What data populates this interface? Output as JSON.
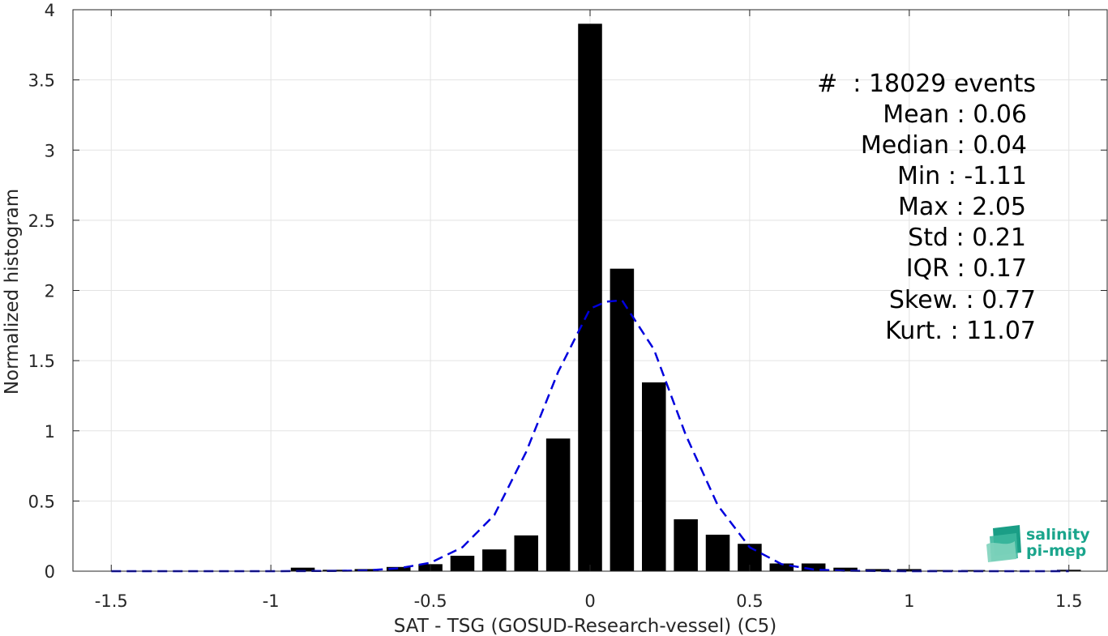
{
  "chart_data": {
    "type": "bar",
    "xlabel": "SAT - TSG (GOSUD-Research-vessel) (C5)",
    "ylabel": "Normalized histogram",
    "xlim": [
      -1.62,
      1.62
    ],
    "ylim": [
      0,
      4
    ],
    "xticks": [
      -1.5,
      -1,
      -0.5,
      0,
      0.5,
      1,
      1.5
    ],
    "xtick_labels": [
      "-1.5",
      "-1",
      "-0.5",
      "0",
      "0.5",
      "1",
      "1.5"
    ],
    "yticks": [
      0,
      0.5,
      1,
      1.5,
      2,
      2.5,
      3,
      3.5,
      4
    ],
    "ytick_labels": [
      "0",
      "0.5",
      "1",
      "1.5",
      "2",
      "2.5",
      "3",
      "3.5",
      "4"
    ],
    "grid": true,
    "bar_width": 0.075,
    "bars": {
      "x": [
        -0.9,
        -0.8,
        -0.7,
        -0.6,
        -0.5,
        -0.4,
        -0.3,
        -0.2,
        -0.1,
        0.0,
        0.1,
        0.2,
        0.3,
        0.4,
        0.5,
        0.6,
        0.7,
        0.8,
        0.9,
        1.0,
        1.1,
        1.2,
        1.3,
        1.5
      ],
      "values": [
        0.025,
        0.01,
        0.015,
        0.03,
        0.05,
        0.11,
        0.155,
        0.255,
        0.945,
        3.9,
        2.155,
        1.345,
        0.37,
        0.26,
        0.195,
        0.055,
        0.055,
        0.025,
        0.015,
        0.015,
        0.008,
        0.008,
        0.005,
        0.01
      ],
      "color": "#000000"
    },
    "fit_curve": {
      "style": "dashed",
      "color": "#0000dd",
      "x": [
        -1.5,
        -1.2,
        -1.0,
        -0.8,
        -0.7,
        -0.6,
        -0.5,
        -0.4,
        -0.3,
        -0.2,
        -0.1,
        0.0,
        0.05,
        0.1,
        0.2,
        0.3,
        0.4,
        0.5,
        0.6,
        0.7,
        0.8,
        1.0,
        1.2,
        1.5
      ],
      "y": [
        0,
        0,
        0,
        0.002,
        0.006,
        0.02,
        0.06,
        0.17,
        0.4,
        0.85,
        1.42,
        1.87,
        1.92,
        1.93,
        1.58,
        0.97,
        0.47,
        0.17,
        0.05,
        0.012,
        0.003,
        0.0,
        0.0,
        0.0
      ]
    },
    "annotations": [
      "#  : 18029 events",
      "Mean : 0.06",
      "Median : 0.04",
      "Min : -1.11",
      "Max : 2.05",
      "Std : 0.21",
      "IQR : 0.17",
      "Skew. : 0.77",
      "Kurt. : 11.07"
    ]
  },
  "logo": {
    "line1": "salinity",
    "line2": "pi-mep",
    "color": "#1aa58c"
  }
}
